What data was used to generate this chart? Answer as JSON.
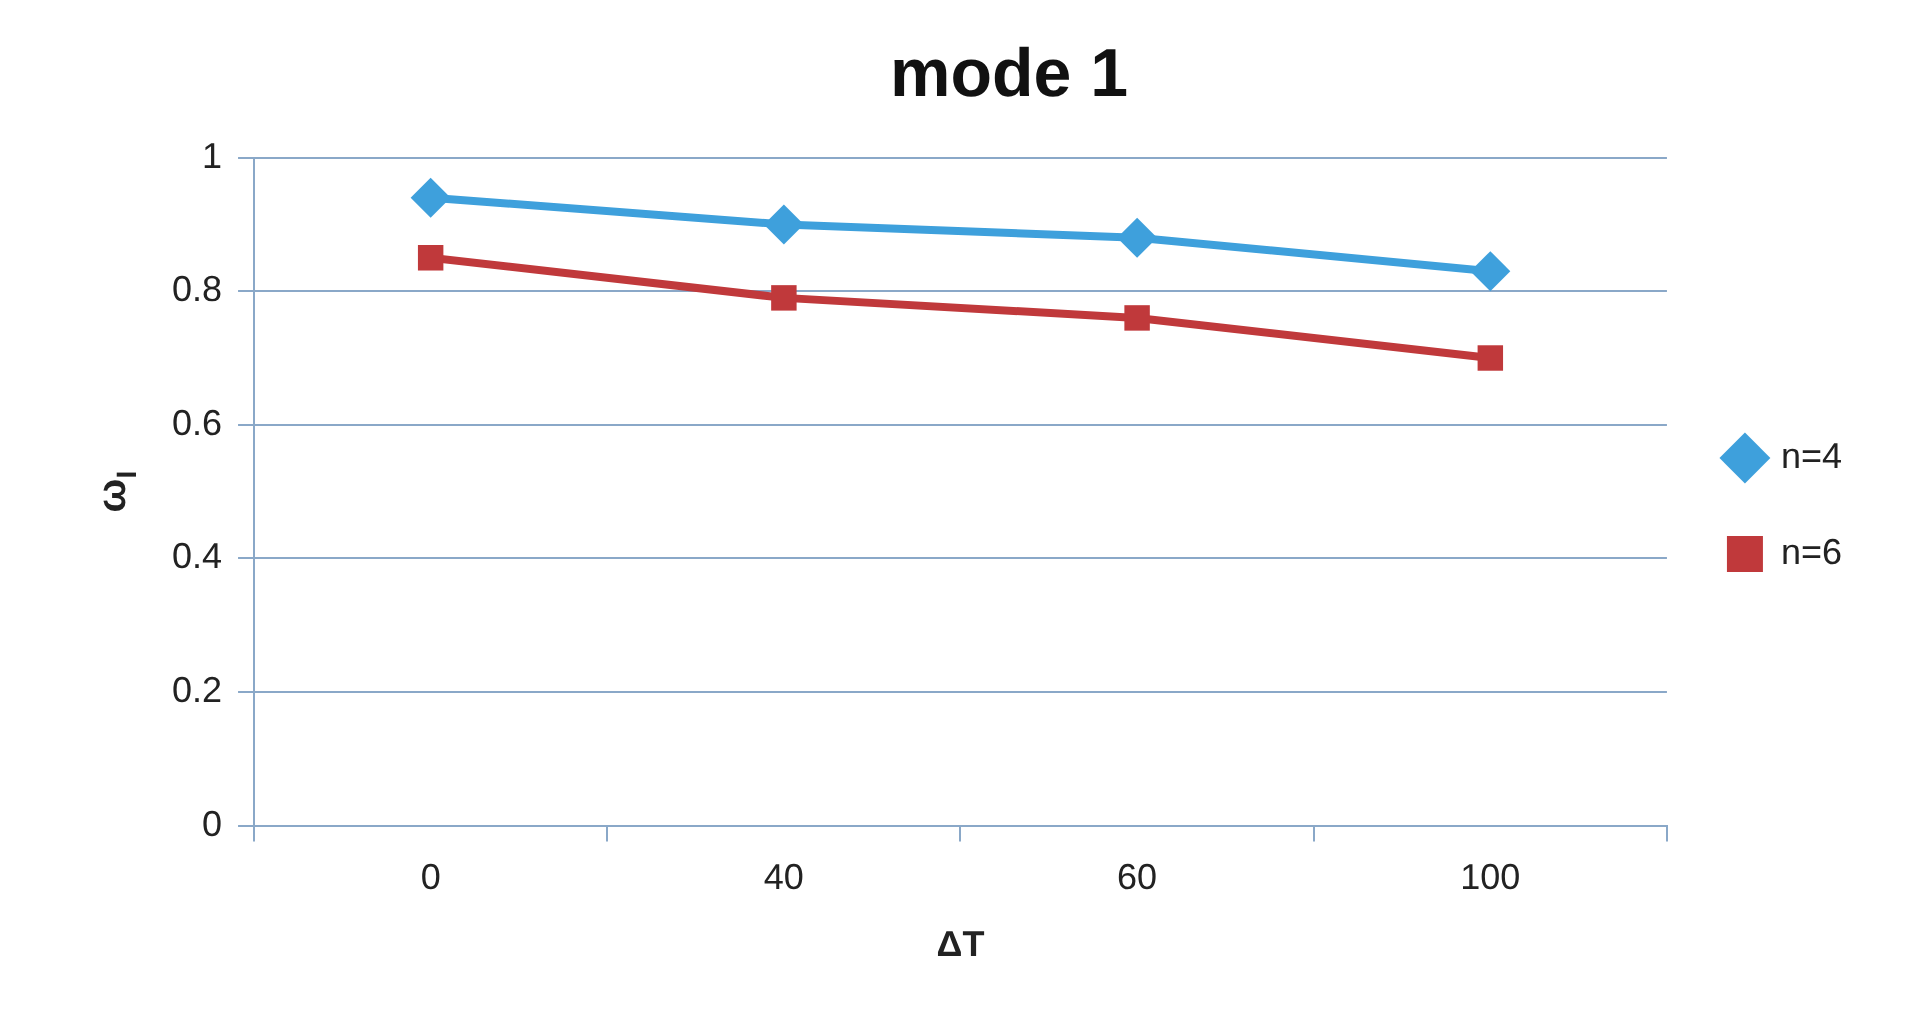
{
  "chart_data": {
    "type": "line",
    "title": "mode 1",
    "xlabel": "ΔT",
    "ylabel": "ω$_{I}$",
    "categories": [
      "0",
      "40",
      "60",
      "100"
    ],
    "series": [
      {
        "name": "n=4",
        "color": "#3ea0dc",
        "marker": "diamond",
        "values": [
          0.94,
          0.9,
          0.88,
          0.83
        ]
      },
      {
        "name": "n=6",
        "color": "#c0393b",
        "marker": "square",
        "values": [
          0.85,
          0.79,
          0.76,
          0.7
        ]
      }
    ],
    "ylim": [
      0,
      1
    ],
    "yticks": [
      0,
      0.2,
      0.4,
      0.6,
      0.8,
      1
    ],
    "grid": "y",
    "legend": "right",
    "line_style": "solid"
  }
}
